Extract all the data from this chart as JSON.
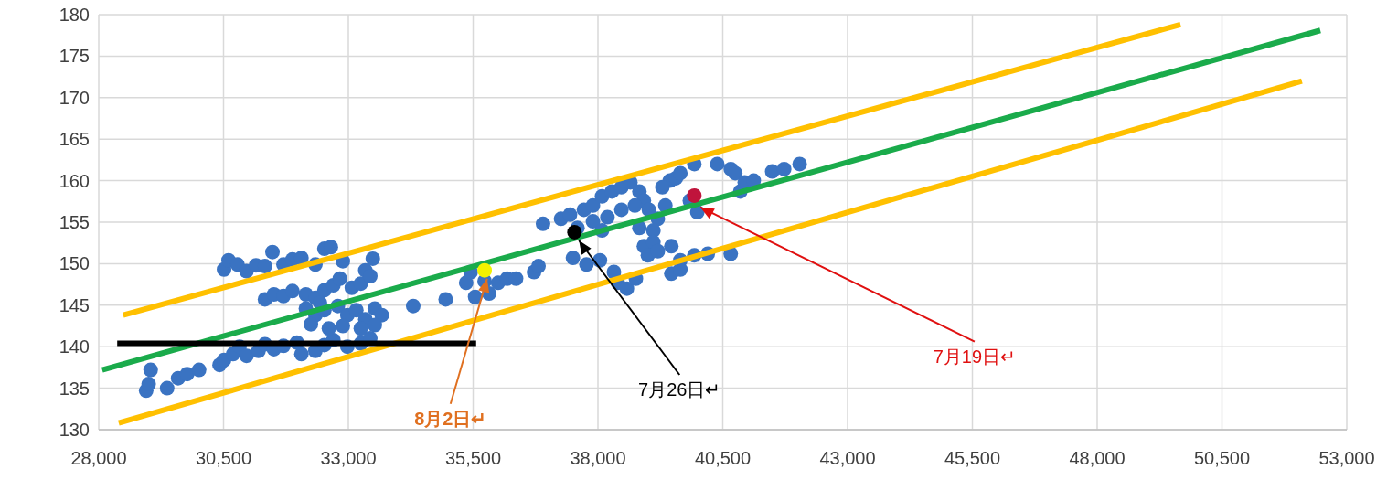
{
  "chart_data": {
    "type": "scatter",
    "grid": true,
    "xlim": [
      28000,
      53000
    ],
    "xticks": [
      {
        "value": 28000,
        "label": "28,000"
      },
      {
        "value": 30500,
        "label": "30,500"
      },
      {
        "value": 33000,
        "label": "33,000"
      },
      {
        "value": 35500,
        "label": "35,500"
      },
      {
        "value": 38000,
        "label": "38,000"
      },
      {
        "value": 40500,
        "label": "40,500"
      },
      {
        "value": 43000,
        "label": "43,000"
      },
      {
        "value": 45500,
        "label": "45,500"
      },
      {
        "value": 48000,
        "label": "48,000"
      },
      {
        "value": 50500,
        "label": "50,500"
      },
      {
        "value": 53000,
        "label": "53,000"
      }
    ],
    "ylim": [
      130,
      180
    ],
    "yticks": [
      130,
      135,
      140,
      145,
      150,
      155,
      160,
      165,
      170,
      175,
      180
    ],
    "series": [
      {
        "marker": "circle",
        "color": "#3a73c2",
        "x": [
          28950,
          29040,
          29000,
          29370,
          29590,
          29770,
          30010,
          30420,
          30510,
          30690,
          30820,
          30960,
          31200,
          31330,
          31510,
          31700,
          31970,
          32060,
          32340,
          32520,
          32700,
          32980,
          33250,
          33440,
          30510,
          30600,
          30780,
          30960,
          31150,
          31330,
          31480,
          31700,
          31880,
          32060,
          32340,
          32520,
          32650,
          32890,
          33340,
          33490,
          31330,
          31510,
          31700,
          31880,
          32150,
          32340,
          32520,
          32700,
          32830,
          33070,
          33250,
          33440,
          32150,
          32340,
          32520,
          32790,
          32980,
          33160,
          33340,
          33530,
          33670,
          32250,
          32610,
          32890,
          33250,
          33530,
          32430,
          34300,
          34950,
          35360,
          35540,
          35730,
          35820,
          36000,
          36180,
          36360,
          36720,
          36810,
          35450,
          36900,
          37260,
          37440,
          37590,
          37720,
          37900,
          38080,
          38280,
          38470,
          38650,
          38830,
          38920,
          37900,
          38190,
          38470,
          38740,
          39020,
          39200,
          38080,
          38830,
          39110,
          38920,
          39110,
          39350,
          39440,
          39560,
          39650,
          39930,
          39290,
          39840,
          39990,
          37500,
          37770,
          38040,
          38320,
          38400,
          38580,
          38760,
          39000,
          39200,
          39470,
          39650,
          39930,
          40200,
          40660,
          39470,
          39650,
          40390,
          40660,
          40750,
          40850,
          40940,
          41120,
          41490,
          41730,
          42040
        ],
        "values": [
          134.7,
          137.2,
          135.5,
          135,
          136.2,
          136.7,
          137.2,
          137.8,
          138.4,
          139.1,
          140,
          138.9,
          139.5,
          140.3,
          139.7,
          140.1,
          140.5,
          139.1,
          139.5,
          140.2,
          140.8,
          140,
          140.4,
          141,
          149.3,
          150.4,
          149.9,
          149.1,
          149.8,
          149.7,
          151.4,
          149.9,
          150.5,
          150.7,
          149.9,
          151.8,
          152,
          150.3,
          149.2,
          150.6,
          145.7,
          146.3,
          146.1,
          146.7,
          146.3,
          145.9,
          146.8,
          147.4,
          148.2,
          147.1,
          147.6,
          148.5,
          144.6,
          143.8,
          144.4,
          144.9,
          143.8,
          144.4,
          143.3,
          144.6,
          143.8,
          142.7,
          142.2,
          142.5,
          142.2,
          142.6,
          145.3,
          144.9,
          145.7,
          147.7,
          146,
          147.9,
          146.4,
          147.7,
          148.2,
          148.2,
          149,
          149.7,
          149,
          154.8,
          155.4,
          155.9,
          154.3,
          156.5,
          157,
          158.1,
          158.7,
          159.2,
          159.8,
          158.7,
          157.6,
          155.1,
          155.6,
          156.5,
          157,
          156.5,
          155.4,
          154,
          154.3,
          154,
          152.1,
          152.6,
          157,
          160,
          160.3,
          160.9,
          162,
          159.2,
          157.6,
          156.2,
          150.7,
          149.9,
          150.4,
          149,
          147.7,
          147,
          148.2,
          151,
          151.5,
          152.1,
          150.4,
          151,
          151.2,
          151.2,
          148.8,
          149.3,
          162,
          161.4,
          160.9,
          158.7,
          159.8,
          160,
          161.1,
          161.4,
          162
        ]
      },
      {
        "type": "line",
        "color": "#ffc000",
        "x": [
          28490,
          49670
        ],
        "values": [
          143.8,
          178.8
        ]
      },
      {
        "type": "line",
        "color": "#ffc000",
        "x": [
          28400,
          52100
        ],
        "values": [
          130.8,
          172
        ]
      },
      {
        "type": "line",
        "color": "#1aab4b",
        "x": [
          28070,
          52470
        ],
        "values": [
          137.2,
          178.1
        ]
      },
      {
        "type": "line",
        "color": "#000000",
        "x": [
          28370,
          35560
        ],
        "values": [
          140.4,
          140.4
        ]
      },
      {
        "marker": "circle",
        "color": "#f2f200",
        "x": [
          35730
        ],
        "values": [
          149.2
        ]
      },
      {
        "marker": "circle",
        "color": "#000000",
        "x": [
          37530
        ],
        "values": [
          153.8
        ]
      },
      {
        "marker": "circle",
        "color": "#c0143c",
        "x": [
          39930
        ],
        "values": [
          158.2
        ]
      }
    ],
    "annotations": [
      {
        "text": "7月19日↵",
        "x": 40050,
        "y": 156.8
      },
      {
        "text": "7月26日↵",
        "x": 37620,
        "y": 152.8
      },
      {
        "text": "8月2日↵",
        "x": 35780,
        "y": 148.2
      }
    ]
  }
}
